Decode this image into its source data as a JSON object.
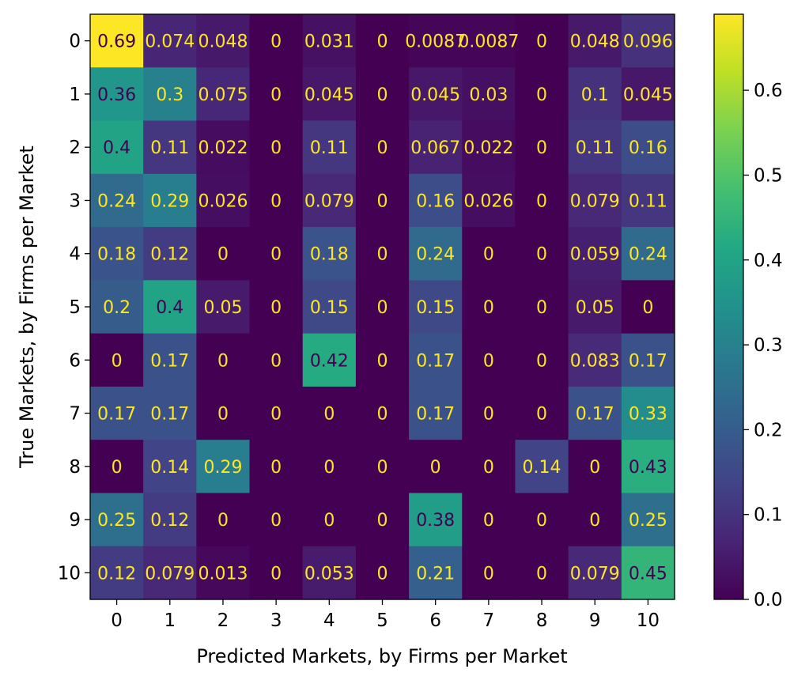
{
  "chart_data": {
    "type": "heatmap",
    "title": "",
    "xlabel": "Predicted Markets, by Firms per Market",
    "ylabel": "True Markets, by Firms per Market",
    "x_categories": [
      "0",
      "1",
      "2",
      "3",
      "4",
      "5",
      "6",
      "7",
      "8",
      "9",
      "10"
    ],
    "y_categories": [
      "0",
      "1",
      "2",
      "3",
      "4",
      "5",
      "6",
      "7",
      "8",
      "9",
      "10"
    ],
    "cell_labels": [
      [
        "0.69",
        "0.074",
        "0.048",
        "0",
        "0.031",
        "0",
        "0.0087",
        "0.0087",
        "0",
        "0.048",
        "0.096"
      ],
      [
        "0.36",
        "0.3",
        "0.075",
        "0",
        "0.045",
        "0",
        "0.045",
        "0.03",
        "0",
        "0.1",
        "0.045"
      ],
      [
        "0.4",
        "0.11",
        "0.022",
        "0",
        "0.11",
        "0",
        "0.067",
        "0.022",
        "0",
        "0.11",
        "0.16"
      ],
      [
        "0.24",
        "0.29",
        "0.026",
        "0",
        "0.079",
        "0",
        "0.16",
        "0.026",
        "0",
        "0.079",
        "0.11"
      ],
      [
        "0.18",
        "0.12",
        "0",
        "0",
        "0.18",
        "0",
        "0.24",
        "0",
        "0",
        "0.059",
        "0.24"
      ],
      [
        "0.2",
        "0.4",
        "0.05",
        "0",
        "0.15",
        "0",
        "0.15",
        "0",
        "0",
        "0.05",
        "0"
      ],
      [
        "0",
        "0.17",
        "0",
        "0",
        "0.42",
        "0",
        "0.17",
        "0",
        "0",
        "0.083",
        "0.17"
      ],
      [
        "0.17",
        "0.17",
        "0",
        "0",
        "0",
        "0",
        "0.17",
        "0",
        "0",
        "0.17",
        "0.33"
      ],
      [
        "0",
        "0.14",
        "0.29",
        "0",
        "0",
        "0",
        "0",
        "0",
        "0.14",
        "0",
        "0.43"
      ],
      [
        "0.25",
        "0.12",
        "0",
        "0",
        "0",
        "0",
        "0.38",
        "0",
        "0",
        "0",
        "0.25"
      ],
      [
        "0.12",
        "0.079",
        "0.013",
        "0",
        "0.053",
        "0",
        "0.21",
        "0",
        "0",
        "0.079",
        "0.45"
      ]
    ],
    "colormap": "viridis",
    "color_range": [
      0,
      0.6896
    ],
    "colorbar_ticks": [
      "0.0",
      "0.1",
      "0.2",
      "0.3",
      "0.4",
      "0.5",
      "0.6"
    ],
    "colorbar_tick_values": [
      0,
      0.1,
      0.2,
      0.3,
      0.4,
      0.5,
      0.6
    ],
    "text_color_light": "#fde725",
    "text_color_dark": "#440154",
    "grid": false
  }
}
